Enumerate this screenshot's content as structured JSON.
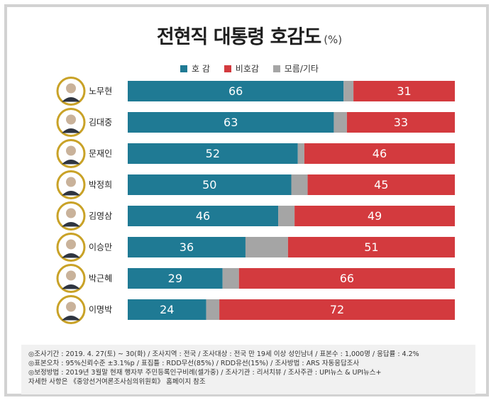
{
  "title": "전현직 대통령 호감도",
  "unit": "(%)",
  "colors": {
    "favorable": "#1f7a94",
    "unfavorable": "#d33a3e",
    "other": "#a5a5a5"
  },
  "legend": [
    {
      "label": "호 감",
      "color": "#1f7a94"
    },
    {
      "label": "비호감",
      "color": "#d33a3e"
    },
    {
      "label": "모름/기타",
      "color": "#a5a5a5"
    }
  ],
  "chart_data": {
    "type": "bar",
    "stacked": true,
    "orientation": "horizontal",
    "categories": [
      "노무현",
      "김대중",
      "문재인",
      "박정희",
      "김영삼",
      "이승만",
      "박근혜",
      "이명박"
    ],
    "series": [
      {
        "name": "호 감",
        "values": [
          66,
          63,
          52,
          50,
          46,
          36,
          29,
          24
        ]
      },
      {
        "name": "비호감",
        "values": [
          31,
          33,
          46,
          45,
          49,
          51,
          66,
          72
        ]
      },
      {
        "name": "모름/기타",
        "values": [
          3,
          4,
          2,
          5,
          5,
          13,
          5,
          4
        ]
      }
    ],
    "title": "전현직 대통령 호감도",
    "xlim": [
      0,
      100
    ]
  },
  "notes": [
    "◎조사기간 : 2019. 4. 27(토) ~ 30(화) / 조사지역 : 전국 / 조사대상 : 전국 만 19세 이상 성인남녀 / 표본수 : 1,000명 / 응답률 : 4.2%",
    "◎표본오차 : 95%신뢰수준 ±3.1%p / 표집틀 : RDD무선(85%) / RDD유선(15%) / 조사방법 : ARS 자동응답조사",
    "◎보정방법 : 2019년 3월말 현재 행자부 주민등록인구비례(셀가중) / 조사기관 : 리서치뷰 / 조사주관 : UPI뉴스 & UPI뉴스+",
    "자세한 사항은 《중앙선거여론조사심의위원회》 홈페이지 참조"
  ]
}
